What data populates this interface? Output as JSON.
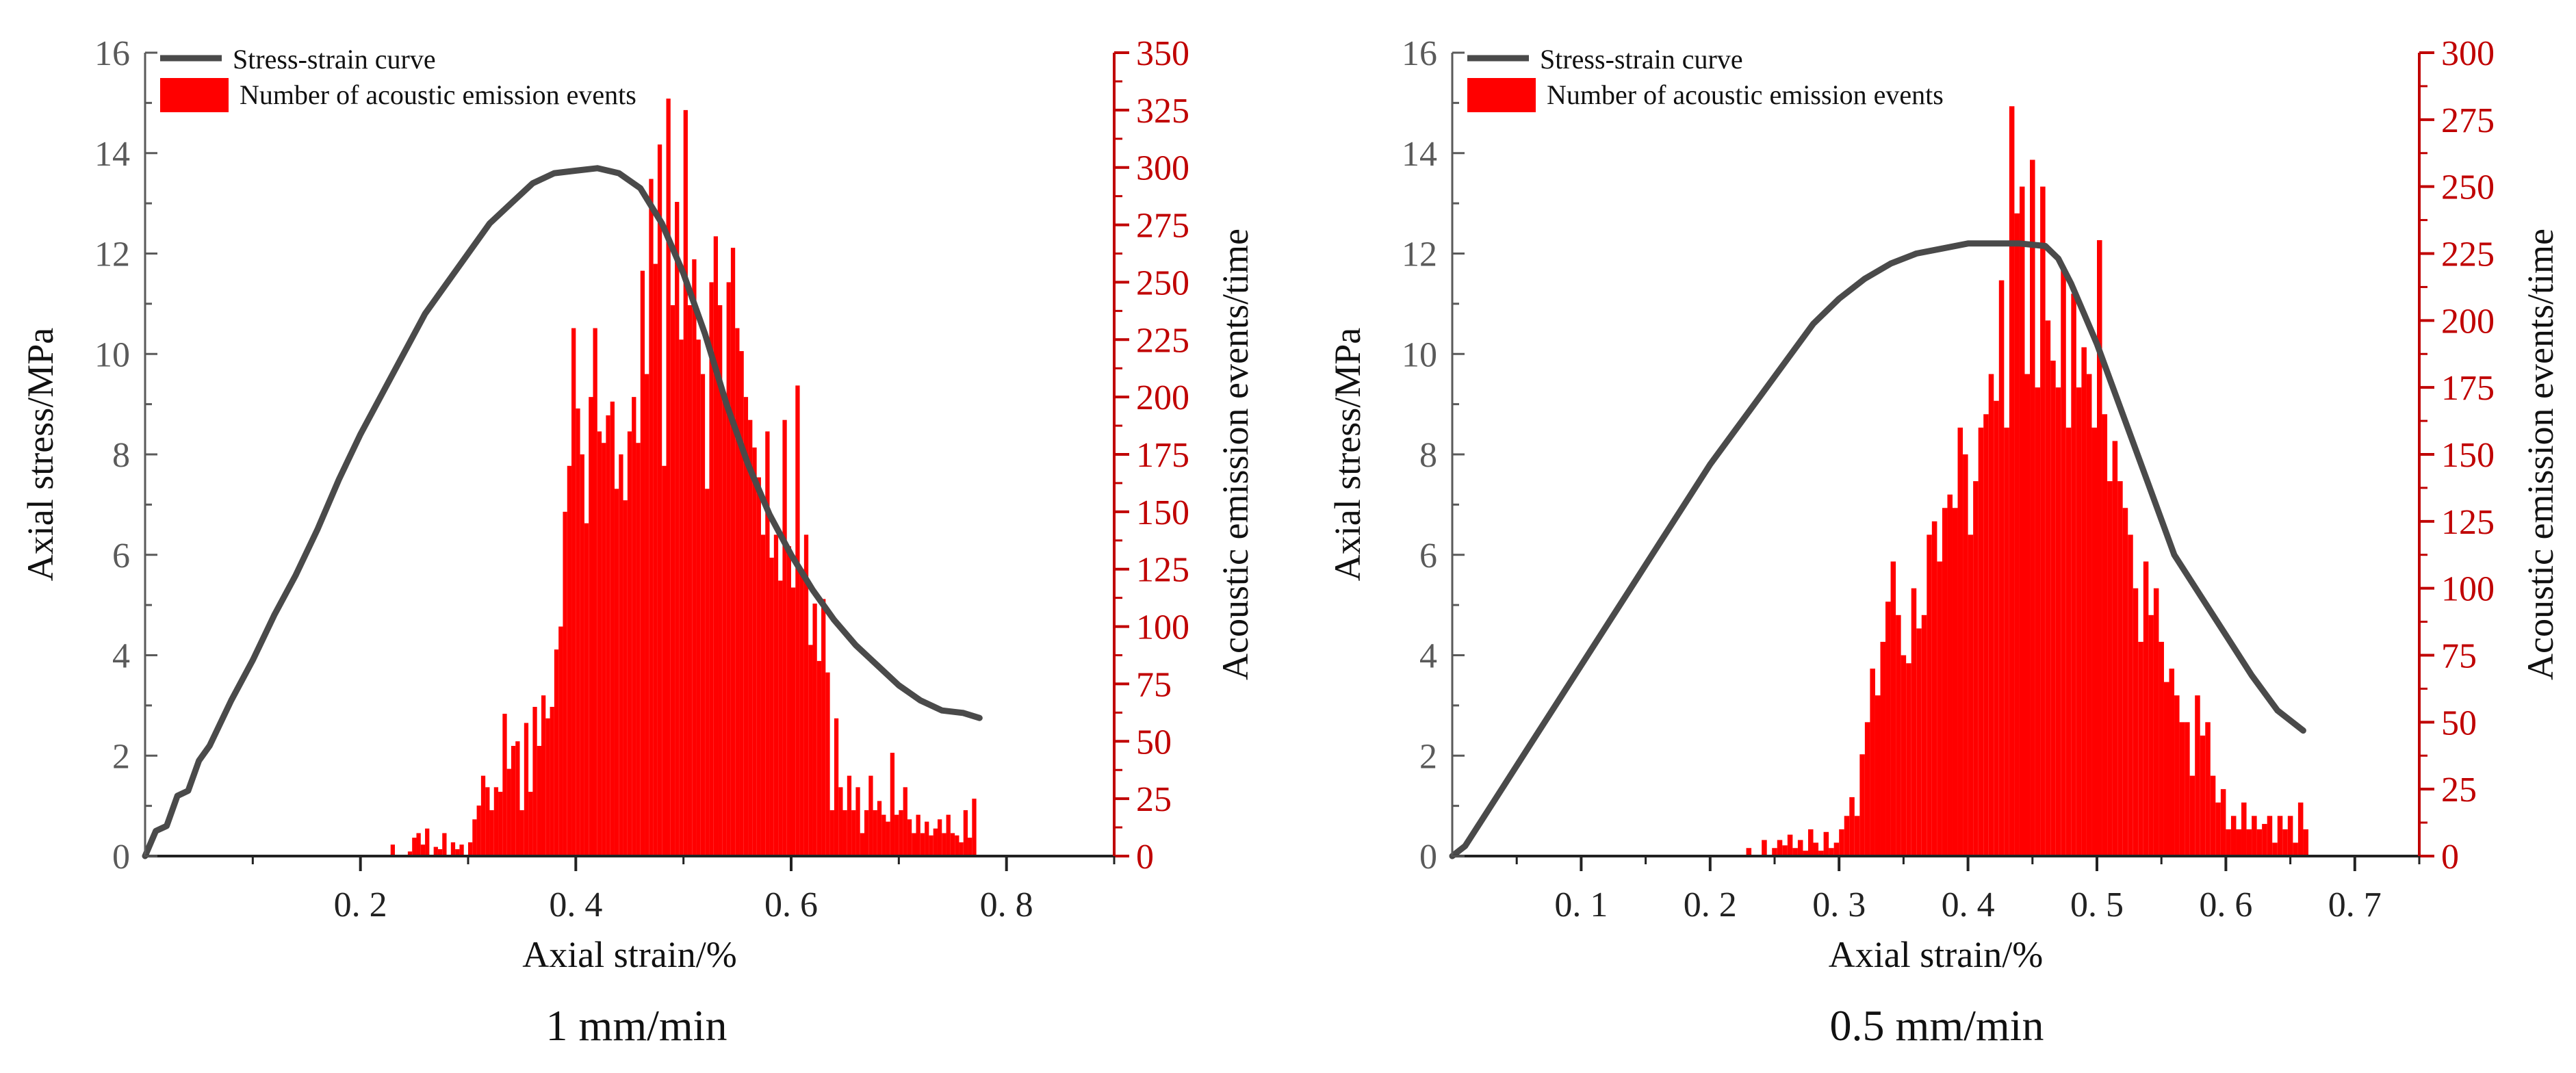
{
  "chart_data": [
    {
      "type": "bar+line",
      "caption": "1 mm/min",
      "xlabel": "Axial strain/%",
      "ylabel_left": "Axial stress/MPa",
      "ylabel_right": "Acoustic emission events/time",
      "xlim": [
        0,
        0.9
      ],
      "ylim_left": [
        0,
        16
      ],
      "ylim_right": [
        0,
        350
      ],
      "x_ticks": [
        0.2,
        0.4,
        0.6,
        0.8
      ],
      "x_tick_labels": [
        "0. 2",
        "0. 4",
        "0. 6",
        "0. 8"
      ],
      "y_left_ticks": [
        0,
        2,
        4,
        6,
        8,
        10,
        12,
        14,
        16
      ],
      "y_right_ticks": [
        0,
        25,
        50,
        75,
        100,
        125,
        150,
        175,
        200,
        225,
        250,
        275,
        300,
        325,
        350
      ],
      "legend": {
        "position": "top-left",
        "entries": [
          "Stress-strain curve",
          "Number of acoustic emission events"
        ]
      },
      "colors": {
        "curve": "#4a4a4a",
        "bars": "#ff0000",
        "right_axis": "#c00000"
      },
      "series": [
        {
          "name": "Stress-strain curve",
          "kind": "line",
          "axis": "left",
          "x": [
            0.0,
            0.01,
            0.02,
            0.03,
            0.04,
            0.05,
            0.06,
            0.08,
            0.1,
            0.12,
            0.14,
            0.16,
            0.18,
            0.2,
            0.22,
            0.24,
            0.26,
            0.28,
            0.3,
            0.32,
            0.34,
            0.36,
            0.38,
            0.4,
            0.42,
            0.44,
            0.46,
            0.48,
            0.5,
            0.52,
            0.54,
            0.56,
            0.58,
            0.6,
            0.62,
            0.64,
            0.66,
            0.68,
            0.7,
            0.72,
            0.74,
            0.76,
            0.775
          ],
          "y": [
            0.0,
            0.5,
            0.6,
            1.2,
            1.3,
            1.9,
            2.2,
            3.1,
            3.9,
            4.8,
            5.6,
            6.5,
            7.5,
            8.4,
            9.2,
            10.0,
            10.8,
            11.4,
            12.0,
            12.6,
            13.0,
            13.4,
            13.6,
            13.65,
            13.7,
            13.6,
            13.3,
            12.6,
            11.6,
            10.4,
            9.0,
            7.8,
            6.8,
            6.0,
            5.3,
            4.7,
            4.2,
            3.8,
            3.4,
            3.1,
            2.9,
            2.85,
            2.75
          ]
        },
        {
          "name": "Number of acoustic emission events",
          "kind": "bar",
          "axis": "right",
          "bin_width": 0.004,
          "x": [
            0.23,
            0.234,
            0.238,
            0.242,
            0.246,
            0.25,
            0.254,
            0.258,
            0.262,
            0.266,
            0.27,
            0.274,
            0.278,
            0.282,
            0.286,
            0.29,
            0.294,
            0.298,
            0.302,
            0.306,
            0.31,
            0.314,
            0.318,
            0.322,
            0.326,
            0.33,
            0.334,
            0.338,
            0.342,
            0.346,
            0.35,
            0.354,
            0.358,
            0.362,
            0.366,
            0.37,
            0.374,
            0.378,
            0.382,
            0.386,
            0.39,
            0.394,
            0.398,
            0.402,
            0.406,
            0.41,
            0.414,
            0.418,
            0.422,
            0.426,
            0.43,
            0.434,
            0.438,
            0.442,
            0.446,
            0.45,
            0.454,
            0.458,
            0.462,
            0.466,
            0.47,
            0.474,
            0.478,
            0.482,
            0.486,
            0.49,
            0.494,
            0.498,
            0.502,
            0.506,
            0.51,
            0.514,
            0.518,
            0.522,
            0.526,
            0.53,
            0.534,
            0.538,
            0.542,
            0.546,
            0.55,
            0.554,
            0.558,
            0.562,
            0.566,
            0.57,
            0.574,
            0.578,
            0.582,
            0.586,
            0.59,
            0.594,
            0.598,
            0.602,
            0.606,
            0.61,
            0.614,
            0.618,
            0.622,
            0.626,
            0.63,
            0.634,
            0.638,
            0.642,
            0.646,
            0.65,
            0.654,
            0.658,
            0.662,
            0.666,
            0.67,
            0.674,
            0.678,
            0.682,
            0.686,
            0.69,
            0.694,
            0.698,
            0.702,
            0.706,
            0.71,
            0.714,
            0.718,
            0.722,
            0.726,
            0.73,
            0.734,
            0.738,
            0.742,
            0.746,
            0.75,
            0.754,
            0.758,
            0.762,
            0.766,
            0.77
          ],
          "values": [
            5,
            0,
            0,
            0,
            2,
            8,
            10,
            5,
            12,
            0,
            4,
            3,
            10,
            0,
            6,
            3,
            5,
            0,
            6,
            16,
            22,
            35,
            30,
            20,
            30,
            28,
            62,
            38,
            48,
            50,
            20,
            58,
            28,
            65,
            48,
            70,
            60,
            65,
            90,
            100,
            150,
            170,
            230,
            195,
            175,
            145,
            200,
            230,
            185,
            180,
            192,
            198,
            160,
            175,
            155,
            185,
            200,
            180,
            255,
            210,
            295,
            258,
            310,
            170,
            330,
            240,
            285,
            225,
            325,
            240,
            260,
            225,
            210,
            160,
            250,
            270,
            240,
            200,
            250,
            265,
            230,
            220,
            200,
            190,
            178,
            165,
            140,
            185,
            130,
            140,
            120,
            190,
            135,
            117,
            205,
            125,
            140,
            92,
            110,
            85,
            112,
            80,
            20,
            60,
            30,
            20,
            35,
            20,
            30,
            10,
            20,
            35,
            20,
            24,
            18,
            15,
            45,
            18,
            20,
            30,
            16,
            10,
            18,
            10,
            15,
            9,
            12,
            16,
            10,
            18,
            10,
            9,
            6,
            20,
            8,
            25
          ],
          "value_scale_note": ""
        }
      ]
    },
    {
      "type": "bar+line",
      "caption": "0.5 mm/min",
      "xlabel": "Axial strain/%",
      "ylabel_left": "Axial stress/MPa",
      "ylabel_right": "Acoustic emission events/time",
      "xlim": [
        0,
        0.75
      ],
      "ylim_left": [
        0,
        16
      ],
      "ylim_right": [
        0,
        300
      ],
      "x_ticks": [
        0.1,
        0.2,
        0.3,
        0.4,
        0.5,
        0.6,
        0.7
      ],
      "x_tick_labels": [
        "0. 1",
        "0. 2",
        "0. 3",
        "0. 4",
        "0. 5",
        "0. 6",
        "0. 7"
      ],
      "y_left_ticks": [
        0,
        2,
        4,
        6,
        8,
        10,
        12,
        14,
        16
      ],
      "y_right_ticks": [
        0,
        25,
        50,
        75,
        100,
        125,
        150,
        175,
        200,
        225,
        250,
        275,
        300
      ],
      "legend": {
        "position": "top-left",
        "entries": [
          "Stress-strain curve",
          "Number of acoustic emission events"
        ]
      },
      "colors": {
        "curve": "#4a4a4a",
        "bars": "#ff0000",
        "right_axis": "#c00000"
      },
      "series": [
        {
          "name": "Stress-strain curve",
          "kind": "line",
          "axis": "left",
          "x": [
            0.0,
            0.01,
            0.02,
            0.04,
            0.06,
            0.08,
            0.1,
            0.12,
            0.14,
            0.16,
            0.18,
            0.2,
            0.22,
            0.24,
            0.26,
            0.28,
            0.3,
            0.32,
            0.34,
            0.36,
            0.38,
            0.4,
            0.42,
            0.44,
            0.46,
            0.47,
            0.48,
            0.49,
            0.5,
            0.52,
            0.54,
            0.56,
            0.58,
            0.6,
            0.62,
            0.64,
            0.66
          ],
          "y": [
            0.0,
            0.2,
            0.6,
            1.4,
            2.2,
            3.0,
            3.8,
            4.6,
            5.4,
            6.2,
            7.0,
            7.8,
            8.5,
            9.2,
            9.9,
            10.6,
            11.1,
            11.5,
            11.8,
            12.0,
            12.1,
            12.2,
            12.2,
            12.2,
            12.15,
            11.9,
            11.4,
            10.8,
            10.2,
            8.8,
            7.4,
            6.0,
            5.2,
            4.4,
            3.6,
            2.9,
            2.5
          ]
        },
        {
          "name": "Number of acoustic emission events",
          "kind": "bar",
          "axis": "right",
          "bin_width": 0.004,
          "x": [
            0.226,
            0.23,
            0.234,
            0.238,
            0.242,
            0.246,
            0.25,
            0.254,
            0.258,
            0.262,
            0.266,
            0.27,
            0.274,
            0.278,
            0.282,
            0.286,
            0.29,
            0.294,
            0.298,
            0.302,
            0.306,
            0.31,
            0.314,
            0.318,
            0.322,
            0.326,
            0.33,
            0.334,
            0.338,
            0.342,
            0.346,
            0.35,
            0.354,
            0.358,
            0.362,
            0.366,
            0.37,
            0.374,
            0.378,
            0.382,
            0.386,
            0.39,
            0.394,
            0.398,
            0.402,
            0.406,
            0.41,
            0.414,
            0.418,
            0.422,
            0.426,
            0.43,
            0.434,
            0.438,
            0.442,
            0.446,
            0.45,
            0.454,
            0.458,
            0.462,
            0.466,
            0.47,
            0.474,
            0.478,
            0.482,
            0.486,
            0.49,
            0.494,
            0.498,
            0.502,
            0.506,
            0.51,
            0.514,
            0.518,
            0.522,
            0.526,
            0.53,
            0.534,
            0.538,
            0.542,
            0.546,
            0.55,
            0.554,
            0.558,
            0.562,
            0.566,
            0.57,
            0.574,
            0.578,
            0.582,
            0.586,
            0.59,
            0.594,
            0.598,
            0.602,
            0.606,
            0.61,
            0.614,
            0.618,
            0.622,
            0.626,
            0.63,
            0.634,
            0.638,
            0.642,
            0.646,
            0.65,
            0.654,
            0.658,
            0.662
          ],
          "values": [
            0,
            3,
            0,
            0,
            6,
            0,
            3,
            6,
            4,
            8,
            3,
            6,
            2,
            10,
            5,
            2,
            9,
            3,
            5,
            10,
            15,
            22,
            15,
            38,
            50,
            70,
            60,
            80,
            95,
            110,
            90,
            75,
            72,
            100,
            85,
            90,
            120,
            125,
            110,
            130,
            135,
            130,
            160,
            150,
            120,
            140,
            160,
            165,
            180,
            170,
            215,
            160,
            280,
            240,
            250,
            180,
            260,
            175,
            250,
            200,
            185,
            175,
            220,
            160,
            210,
            175,
            190,
            180,
            160,
            230,
            165,
            140,
            155,
            140,
            130,
            120,
            100,
            80,
            110,
            90,
            100,
            80,
            65,
            70,
            60,
            50,
            50,
            30,
            60,
            45,
            50,
            30,
            20,
            25,
            10,
            15,
            10,
            20,
            10,
            15,
            10,
            12,
            15,
            5,
            15,
            10,
            15,
            5,
            20,
            10
          ],
          "value_scale_note": ""
        }
      ]
    }
  ]
}
